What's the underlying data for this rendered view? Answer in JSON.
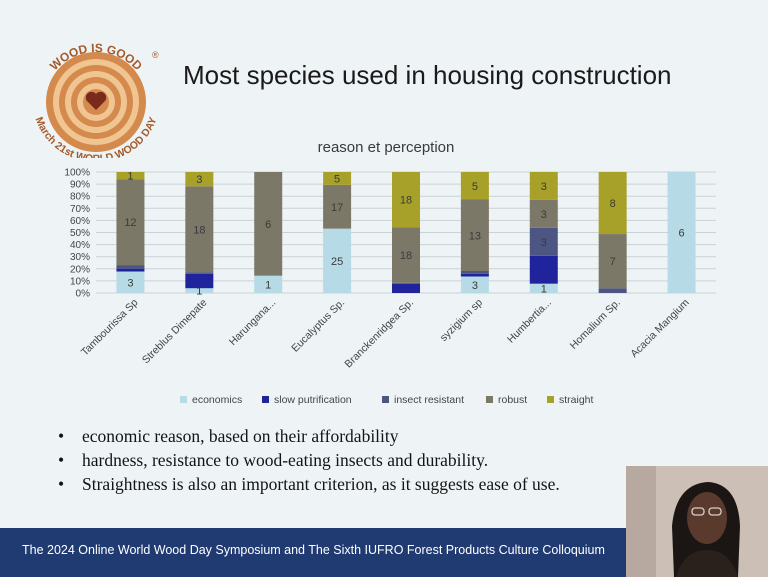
{
  "slide": {
    "logo": {
      "top_text": "WOOD IS GOOD",
      "registered_mark": "®",
      "bottom_text": "March 21st WORLD WOOD DAY",
      "icon": "heart-icon"
    },
    "title": "Most species used in housing construction",
    "bullets": [
      "economic reason, based on their affordability",
      " hardness, resistance to wood-eating insects and durability.",
      "Straightness is also an important criterion, as it suggests ease of use."
    ],
    "footer": "The 2024 Online World Wood Day Symposium and The Sixth IUFRO Forest Products Culture Colloquium"
  },
  "colors": {
    "footer_bg": "#203a72",
    "economics": "#b6dbe6",
    "slow_putrification": "#1f249c",
    "insect_resistant": "#4d5683",
    "robust": "#7c7868",
    "straight": "#a7a12a"
  },
  "chart_data": {
    "type": "bar",
    "stacked": "percent",
    "title": "reason et perception",
    "categories": [
      "Tambourissa Sp",
      "Streblus Dimepate",
      "Harungana...",
      "Eucalyptus Sp.",
      "Branckenridgea Sp.",
      "syzigium sp",
      "Humbertia...",
      "Homalium Sp.",
      "Acacia Mangium"
    ],
    "yticks": [
      "0%",
      "10%",
      "20%",
      "30%",
      "40%",
      "50%",
      "60%",
      "70%",
      "80%",
      "90%",
      "100%"
    ],
    "ylim": [
      0,
      100
    ],
    "grid": true,
    "legend_position": "bottom",
    "series": [
      {
        "name": "economics",
        "color": "#b6dbe6",
        "values": [
          3,
          1,
          1,
          25,
          0,
          3,
          1,
          0,
          6
        ],
        "labels": [
          "3",
          "1",
          "1",
          "25",
          "",
          "3",
          "1",
          "",
          "6"
        ]
      },
      {
        "name": "slow putrification",
        "color": "#1f249c",
        "values": [
          0.4,
          3,
          0,
          0,
          3,
          0.5,
          3,
          0,
          0
        ],
        "labels": [
          "",
          "",
          "",
          "",
          "",
          "",
          "",
          "",
          ""
        ]
      },
      {
        "name": "insect resistant",
        "color": "#4d5683",
        "values": [
          0.5,
          0.3,
          0,
          0,
          0.3,
          0.5,
          3,
          0.6,
          0
        ],
        "labels": [
          "",
          "",
          "",
          "",
          "",
          "",
          "3",
          "",
          ""
        ]
      },
      {
        "name": "robust",
        "color": "#7c7868",
        "values": [
          12,
          18,
          6,
          17,
          18,
          13,
          3,
          7,
          0
        ],
        "labels": [
          "12",
          "18",
          "6",
          "17",
          "18",
          "13",
          "3",
          "7",
          ""
        ]
      },
      {
        "name": "straight",
        "color": "#a7a12a",
        "values": [
          1,
          3,
          0,
          5,
          18,
          5,
          3,
          8,
          0
        ],
        "labels": [
          "1",
          "3",
          "",
          "5",
          "18",
          "5",
          "3",
          "8",
          ""
        ]
      }
    ]
  },
  "webcam": {
    "icon": "presenter-video-icon"
  }
}
